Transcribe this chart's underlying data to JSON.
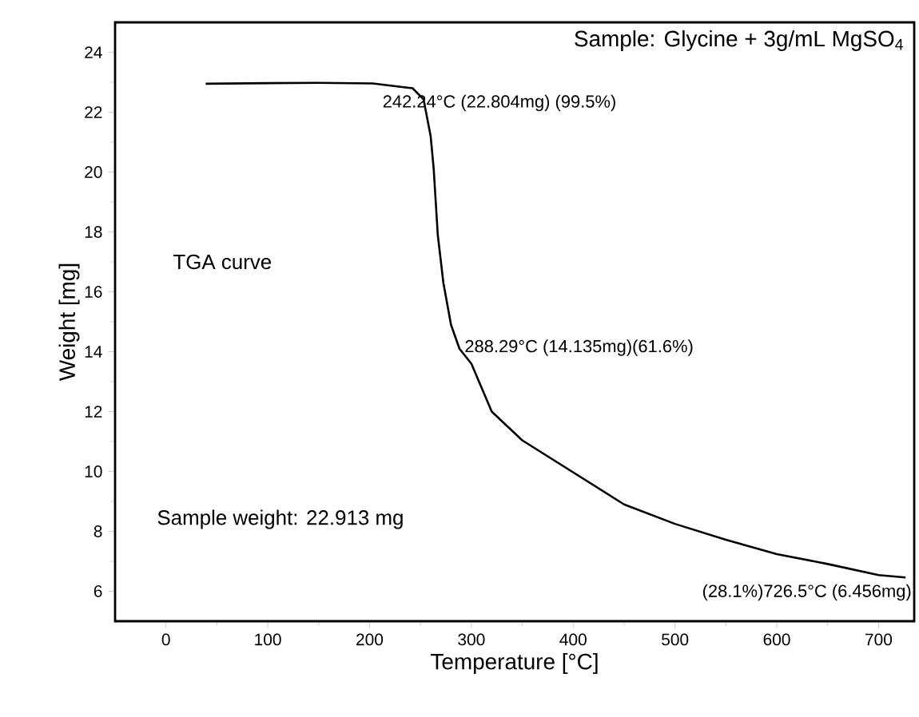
{
  "chart_data": {
    "type": "line",
    "xlabel": "Temperature [°C]",
    "ylabel": "Weight [mg]",
    "x": [
      39,
      100,
      150,
      203,
      237,
      242.24,
      253,
      260,
      263,
      267,
      272.5,
      280,
      288.29,
      300,
      320,
      350,
      400,
      450,
      500,
      550,
      600,
      650,
      700,
      726.5
    ],
    "series": [
      {
        "color": "#000000",
        "values": [
          22.95,
          22.97,
          22.98,
          22.96,
          22.82,
          22.8,
          22.43,
          21.2,
          20.1,
          17.9,
          16.3,
          14.9,
          14.1,
          13.6,
          12.0,
          11.04,
          9.97,
          8.9,
          8.25,
          7.72,
          7.24,
          6.91,
          6.54,
          6.46
        ]
      }
    ],
    "xlim": [
      -50,
      735
    ],
    "ylim": [
      5,
      25
    ],
    "xticks": [
      0,
      100,
      200,
      300,
      400,
      500,
      600,
      700
    ],
    "yticks": [
      6,
      8,
      10,
      12,
      14,
      16,
      18,
      20,
      22,
      24
    ],
    "marker": "none",
    "line_style": "solid",
    "annotations": [
      {
        "text": "242.24°C (22.804mg) (99.5%)",
        "x": 242.24,
        "y": 22.804
      },
      {
        "text": "288.29°C (14.135mg)(61.6%)",
        "x": 288.29,
        "y": 14.135
      },
      {
        "text": "(28.1%)726.5°C (6.456mg)",
        "x": 726.5,
        "y": 6.456
      },
      "Sample: Glycine + 3g/mL MgSO$_{4}$",
      "TGA curve",
      "Sample weight: 22.913 mg"
    ]
  }
}
